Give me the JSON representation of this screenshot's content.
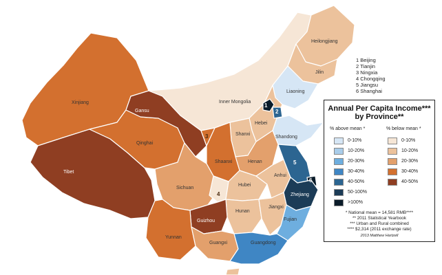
{
  "legend": {
    "title": "Annual Per Capita Income*** by Province**",
    "above_header": "% above mean *",
    "below_header": "% below mean *",
    "above": [
      {
        "label": "0-10%",
        "color": "#d6e6f5"
      },
      {
        "label": "10-20%",
        "color": "#a9cdea"
      },
      {
        "label": "20-30%",
        "color": "#6eaedf"
      },
      {
        "label": "30-40%",
        "color": "#3f86c4"
      },
      {
        "label": "40-50%",
        "color": "#2c6591"
      },
      {
        "label": "50-100%",
        "color": "#1c3c57"
      },
      {
        "label": ">100%",
        "color": "#0b1c2a"
      }
    ],
    "below": [
      {
        "label": "0-10%",
        "color": "#f6e6d6"
      },
      {
        "label": "10-20%",
        "color": "#ecc29c"
      },
      {
        "label": "20-30%",
        "color": "#e3a06c"
      },
      {
        "label": "30-40%",
        "color": "#d3702f"
      },
      {
        "label": "40-50%",
        "color": "#8f3e22"
      }
    ],
    "notes": [
      "* National mean = 14,581 RMB****",
      "** 2011 Statistical Yearbook",
      "*** Urban and Rural combined",
      "**** $2,314 (2011 exchange rate)"
    ],
    "credit": "2013 Matthew Hartzell"
  },
  "municipality_key": [
    "1 Beijing",
    "2 Tianjin",
    "3 Ningxia",
    "4 Chongqing",
    "5 Jiangsu",
    "6 Shanghai"
  ],
  "provinces": [
    {
      "name": "Xinjiang",
      "category": "below 30-40%",
      "color": "#d3702f"
    },
    {
      "name": "Tibet",
      "category": "below 40-50%",
      "color": "#8f3e22"
    },
    {
      "name": "Qinghai",
      "category": "below 30-40%",
      "color": "#d3702f"
    },
    {
      "name": "Gansu",
      "category": "below 40-50%",
      "color": "#8f3e22"
    },
    {
      "name": "Inner Mongolia",
      "category": "below 0-10%",
      "color": "#f6e6d6"
    },
    {
      "name": "Heilongjiang",
      "category": "below 10-20%",
      "color": "#ecc29c"
    },
    {
      "name": "Jilin",
      "category": "below 10-20%",
      "color": "#ecc29c"
    },
    {
      "name": "Liaoning",
      "category": "above 0-10%",
      "color": "#d6e6f5"
    },
    {
      "name": "Hebei",
      "category": "below 10-20%",
      "color": "#ecc29c"
    },
    {
      "name": "Shanxi",
      "category": "below 10-20%",
      "color": "#ecc29c"
    },
    {
      "name": "Shandong",
      "category": "above 0-10%",
      "color": "#d6e6f5"
    },
    {
      "name": "Henan",
      "category": "below 20-30%",
      "color": "#e3a06c"
    },
    {
      "name": "Shaanxi",
      "category": "below 30-40%",
      "color": "#d3702f"
    },
    {
      "name": "Sichuan",
      "category": "below 20-30%",
      "color": "#e3a06c"
    },
    {
      "name": "Hubei",
      "category": "below 10-20%",
      "color": "#ecc29c"
    },
    {
      "name": "Anhui",
      "category": "below 10-20%",
      "color": "#ecc29c"
    },
    {
      "name": "Hunan",
      "category": "below 10-20%",
      "color": "#ecc29c"
    },
    {
      "name": "Jiangxi",
      "category": "below 10-20%",
      "color": "#ecc29c"
    },
    {
      "name": "Guizhou",
      "category": "below 40-50%",
      "color": "#8f3e22"
    },
    {
      "name": "Yunnan",
      "category": "below 30-40%",
      "color": "#d3702f"
    },
    {
      "name": "Guangxi",
      "category": "below 20-30%",
      "color": "#e3a06c"
    },
    {
      "name": "Guangdong",
      "category": "above 30-40%",
      "color": "#3f86c4"
    },
    {
      "name": "Fujian",
      "category": "above 20-30%",
      "color": "#6eaedf"
    },
    {
      "name": "Zhejiang",
      "category": "above 50-100%",
      "color": "#1c3c57"
    },
    {
      "name": "Jiangsu",
      "category": "above 40-50%",
      "color": "#2c6591"
    },
    {
      "name": "Shanghai",
      "category": ">100%",
      "color": "#0b1c2a"
    },
    {
      "name": "Beijing",
      "category": ">100%",
      "color": "#0b1c2a"
    },
    {
      "name": "Tianjin",
      "category": "above 40-50%",
      "color": "#2c6591"
    },
    {
      "name": "Ningxia",
      "category": "below 30-40%",
      "color": "#d3702f"
    },
    {
      "name": "Chongqing",
      "category": "below 0-10%",
      "color": "#f6e6d6"
    },
    {
      "name": "Hainan",
      "category": "below 10-20%",
      "color": "#ecc29c"
    }
  ],
  "key_numbers": [
    "1",
    "2",
    "3",
    "4",
    "5",
    "6"
  ]
}
